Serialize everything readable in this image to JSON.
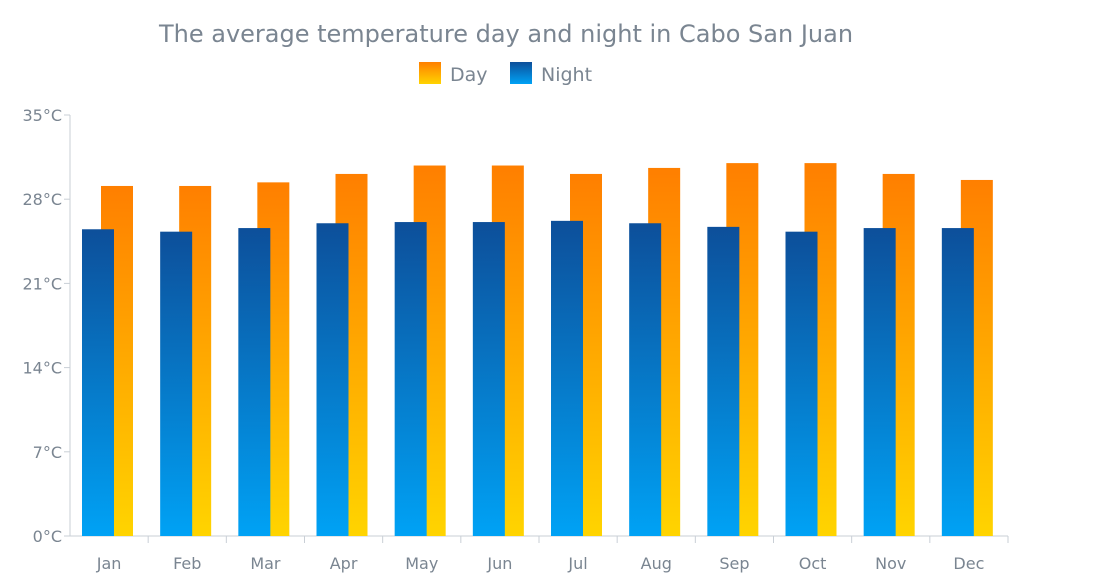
{
  "chart_data": {
    "type": "bar",
    "title": "The average temperature day and night in Cabo San Juan",
    "categories": [
      "Jan",
      "Feb",
      "Mar",
      "Apr",
      "May",
      "Jun",
      "Jul",
      "Aug",
      "Sep",
      "Oct",
      "Nov",
      "Dec"
    ],
    "series": [
      {
        "name": "Night",
        "values": [
          25.5,
          25.3,
          25.6,
          26.0,
          26.1,
          26.1,
          26.2,
          26.0,
          25.7,
          25.3,
          25.6,
          25.6
        ]
      },
      {
        "name": "Day",
        "values": [
          29.1,
          29.1,
          29.4,
          30.1,
          30.8,
          30.8,
          30.1,
          30.6,
          31.0,
          31.0,
          30.1,
          29.6
        ]
      }
    ],
    "y_ticks": [
      "0°C",
      "7°C",
      "14°C",
      "21°C",
      "28°C",
      "35°C"
    ],
    "ylim": [
      0,
      35
    ],
    "legend_position": "top-center",
    "colors": {
      "day_top": "#ff7f00",
      "day_bottom": "#ffd400",
      "night_top": "#0d4f9a",
      "night_bottom": "#00a2f5"
    }
  }
}
